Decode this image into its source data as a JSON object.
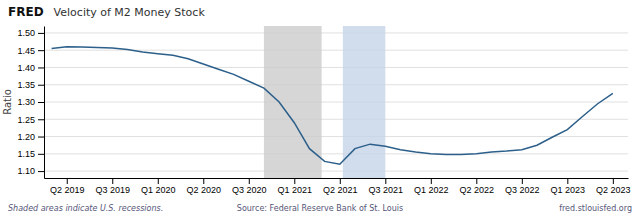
{
  "chart_data": {
    "type": "line",
    "title": "Velocity of M2 Money Stock",
    "y_label": "Ratio",
    "annotations": [
      "FRED",
      "Shaded areas indicate U.S. recessions.",
      "Source: Federal Reserve Bank of St. Louis",
      "fred.stlouisfed.org"
    ],
    "color": "#2c5f8a",
    "x": [
      0,
      1,
      2,
      3,
      4,
      5,
      6,
      7,
      8,
      9,
      10,
      11,
      12,
      13,
      14,
      15,
      16,
      17,
      18,
      19,
      20,
      21,
      22,
      23,
      24,
      25,
      26,
      27,
      28,
      29,
      30,
      31,
      32,
      33,
      34,
      35,
      36,
      37
    ],
    "values": [
      1.455,
      1.46,
      1.459,
      1.458,
      1.456,
      1.452,
      1.445,
      1.44,
      1.435,
      1.425,
      1.41,
      1.395,
      1.38,
      1.36,
      1.34,
      1.3,
      1.24,
      1.165,
      1.128,
      1.12,
      1.165,
      1.178,
      1.172,
      1.162,
      1.155,
      1.15,
      1.148,
      1.148,
      1.15,
      1.155,
      1.158,
      1.162,
      1.175,
      1.198,
      1.22,
      1.258,
      1.295,
      1.325
    ],
    "xlim": [
      -0.5,
      38.0
    ],
    "xticks": [
      {
        "value": 1,
        "label": "Q2 2019"
      },
      {
        "value": 4,
        "label": "Q3 2019"
      },
      {
        "value": 7,
        "label": "Q1 2020"
      },
      {
        "value": 10,
        "label": "Q2 2020"
      },
      {
        "value": 13,
        "label": "Q3 2020"
      },
      {
        "value": 16,
        "label": "Q1 2021"
      },
      {
        "value": 19,
        "label": "Q2 2021"
      },
      {
        "value": 22,
        "label": "Q3 2021"
      },
      {
        "value": 25,
        "label": "Q1 2022"
      },
      {
        "value": 28,
        "label": "Q2 2022"
      },
      {
        "value": 31,
        "label": "Q3 2022"
      },
      {
        "value": 34,
        "label": "Q1 2023"
      },
      {
        "value": 37,
        "label": "Q2 2023"
      }
    ],
    "ylim": [
      1.08,
      1.52
    ],
    "yticks": [
      {
        "value": 1.1,
        "label": "1.10"
      },
      1.15,
      {
        "value": 1.2,
        "label": "1.20"
      },
      1.25,
      {
        "value": 1.3,
        "label": "1.30"
      },
      1.35,
      {
        "value": 1.4,
        "label": "1.40"
      },
      1.45,
      {
        "value": 1.5,
        "label": "1.50"
      }
    ],
    "shaded_ranges": [
      {
        "x0": 14,
        "x1": 17.8,
        "color": "#cccccc"
      },
      {
        "x0": 19.2,
        "x1": 22.0,
        "color": "#c5d3e8"
      }
    ],
    "grid": true
  }
}
